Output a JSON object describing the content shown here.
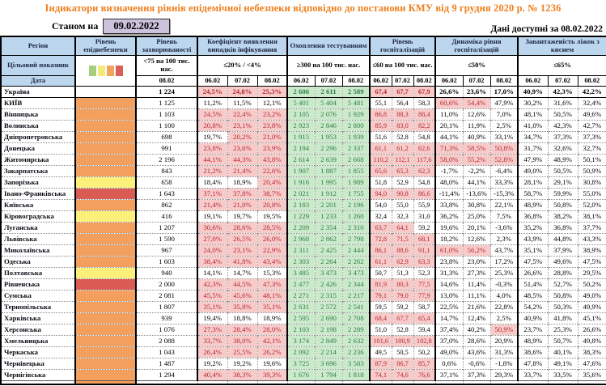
{
  "title": "Індикатори визначення рівнів епідемічної небезпеки відповідно до постанови КМУ від 9 грудня 2020 р. № 1236",
  "subheader": {
    "as_of_label": "Станом на",
    "as_of_date": "09.02.2022",
    "available_label": "Дані доступні за",
    "available_date": "08.02.2022"
  },
  "header": {
    "region_label": "Регіон",
    "target_label": "Цільовий показник",
    "date_label": "Дата",
    "groups": [
      {
        "name": "Рівень епіднебезпеки",
        "threshold": "",
        "dates": []
      },
      {
        "name": "Рівень захворюваності",
        "threshold": "<75 на 100 тис. нас.",
        "dates": [
          "08.02"
        ]
      },
      {
        "name": "Коефіцієнт виявлення випадків інфікування",
        "threshold": "≤20% / <4%",
        "dates": [
          "06.02",
          "07.02",
          "08.02"
        ]
      },
      {
        "name": "Охоплення тестуванням",
        "threshold": "≥300 на 100 тис. нас.",
        "dates": [
          "06.02",
          "07.02",
          "08.02"
        ]
      },
      {
        "name": "Рівень госпіталізацій",
        "threshold": "≤60 на 100 тис. нас.",
        "dates": [
          "06.02",
          "07.02",
          "08.02"
        ]
      },
      {
        "name": "Динаміка рівня госпіталізацій",
        "threshold": "≤50%",
        "dates": [
          "06.02",
          "07.02",
          "08.02"
        ]
      },
      {
        "name": "Завантаженість ліжок з киснем",
        "threshold": "≤65%",
        "dates": [
          "06.02",
          "07.02",
          "08.02"
        ]
      }
    ]
  },
  "legend_colors": [
    "#A5CE7D",
    "#F5E97B",
    "#F2A45C",
    "#DB5E58"
  ],
  "level_colors": {
    "none": "#FFFFFF",
    "green": "#A5CE7D",
    "yellow": "#FAF07A",
    "orange": "#F3A05E",
    "red": "#D95B53"
  },
  "thresholds": {
    "koef": 20,
    "hosp": 60,
    "dyn": 50,
    "load": 65
  },
  "status_colors": {
    "good_bg": "#CBEACB",
    "good_text": "#2F7D44",
    "bad_bg": "#F8CBCB",
    "bad_text": "#B3262E"
  },
  "rows": [
    {
      "region": "Україна",
      "bold": true,
      "level": "none",
      "zahv": "1 224",
      "koef": [
        "24,5%",
        "24,8%",
        "25,3%"
      ],
      "test": [
        "2 606",
        "2 611",
        "2 589"
      ],
      "hosp": [
        "67,4",
        "67,7",
        "67,9"
      ],
      "dyn": [
        "26,6%",
        "23,6%",
        "17,0%"
      ],
      "load": [
        "40,9%",
        "42,3%",
        "42,2%"
      ]
    },
    {
      "region": "КИЇВ",
      "bold": false,
      "level": "orange",
      "zahv": "1 125",
      "koef": [
        "11,2%",
        "11,5%",
        "12,1%"
      ],
      "test": [
        "5 401",
        "5 404",
        "5 481"
      ],
      "hosp": [
        "55,1",
        "56,4",
        "58,3"
      ],
      "dyn": [
        "60,6%",
        "54,4%",
        "47,9%"
      ],
      "load": [
        "30,2%",
        "31,6%",
        "32,4%"
      ]
    },
    {
      "region": "Вінницька",
      "bold": false,
      "level": "orange",
      "zahv": "1 103",
      "koef": [
        "24,5%",
        "22,4%",
        "23,2%"
      ],
      "test": [
        "2 105",
        "2 076",
        "1 929"
      ],
      "hosp": [
        "86,8",
        "88,3",
        "88,4"
      ],
      "dyn": [
        "11,0%",
        "12,6%",
        "7,0%"
      ],
      "load": [
        "48,1%",
        "50,5%",
        "49,6%"
      ]
    },
    {
      "region": "Волинська",
      "bold": false,
      "level": "orange",
      "zahv": "1 100",
      "koef": [
        "20,8%",
        "23,1%",
        "23,8%"
      ],
      "test": [
        "2 923",
        "2 846",
        "2 800"
      ],
      "hosp": [
        "85,9",
        "83,0",
        "82,2"
      ],
      "dyn": [
        "20,1%",
        "11,9%",
        "2,5%"
      ],
      "load": [
        "41,0%",
        "42,3%",
        "42,7%"
      ]
    },
    {
      "region": "Дніпропетровська",
      "bold": false,
      "level": "orange",
      "zahv": "698",
      "koef": [
        "19,7%",
        "20,2%",
        "21,0%"
      ],
      "test": [
        "1 915",
        "1 953",
        "1 939"
      ],
      "hosp": [
        "51,6",
        "52,8",
        "54,8"
      ],
      "dyn": [
        "44,1%",
        "40,9%",
        "33,1%"
      ],
      "load": [
        "34,7%",
        "37,3%",
        "37,3%"
      ]
    },
    {
      "region": "Донецька",
      "bold": false,
      "level": "orange",
      "zahv": "991",
      "koef": [
        "23,8%",
        "23,6%",
        "23,9%"
      ],
      "test": [
        "2 194",
        "2 296",
        "2 337"
      ],
      "hosp": [
        "61,1",
        "61,2",
        "62,6"
      ],
      "dyn": [
        "71,3%",
        "58,5%",
        "50,8%"
      ],
      "load": [
        "31,7%",
        "32,6%",
        "32,7%"
      ]
    },
    {
      "region": "Житомирська",
      "bold": false,
      "level": "orange",
      "zahv": "2 196",
      "koef": [
        "44,1%",
        "44,3%",
        "43,8%"
      ],
      "test": [
        "2 614",
        "2 639",
        "2 668"
      ],
      "hosp": [
        "110,2",
        "112,1",
        "117,6"
      ],
      "dyn": [
        "58,0%",
        "55,2%",
        "52,8%"
      ],
      "load": [
        "47,9%",
        "48,9%",
        "50,1%"
      ]
    },
    {
      "region": "Закарпатська",
      "bold": false,
      "level": "orange",
      "zahv": "843",
      "koef": [
        "21,2%",
        "21,4%",
        "22,6%"
      ],
      "test": [
        "1 907",
        "1 887",
        "1 855"
      ],
      "hosp": [
        "65,6",
        "65,3",
        "62,3"
      ],
      "dyn": [
        "-1,7%",
        "-2,2%",
        "-6,4%"
      ],
      "load": [
        "49,0%",
        "50,5%",
        "50,9%"
      ]
    },
    {
      "region": "Запорізька",
      "bold": false,
      "level": "yellow",
      "zahv": "658",
      "koef": [
        "18,4%",
        "18,9%",
        "20,4%"
      ],
      "test": [
        "1 916",
        "1 995",
        "1 989"
      ],
      "hosp": [
        "51,8",
        "52,9",
        "54,8"
      ],
      "dyn": [
        "48,0%",
        "44,1%",
        "33,3%"
      ],
      "load": [
        "28,1%",
        "29,1%",
        "30,8%"
      ]
    },
    {
      "region": "Івано-Франківська",
      "bold": false,
      "level": "red",
      "zahv": "1 643",
      "koef": [
        "37,1%",
        "37,8%",
        "38,7%"
      ],
      "test": [
        "2 021",
        "1 912",
        "1 755"
      ],
      "hosp": [
        "94,0",
        "90,8",
        "86,6"
      ],
      "dyn": [
        "-11,4%",
        "-13,6%",
        "-15,3%"
      ],
      "load": [
        "58,7%",
        "59,9%",
        "55,0%"
      ]
    },
    {
      "region": "Київська",
      "bold": false,
      "level": "orange",
      "zahv": "862",
      "koef": [
        "21,4%",
        "21,0%",
        "20,8%"
      ],
      "test": [
        "2 183",
        "2 201",
        "2 196"
      ],
      "hosp": [
        "54,0",
        "55,0",
        "55,9"
      ],
      "dyn": [
        "33,8%",
        "30,8%",
        "22,1%"
      ],
      "load": [
        "48,9%",
        "50,8%",
        "52,0%"
      ]
    },
    {
      "region": "Кіровоградська",
      "bold": false,
      "level": "yellow",
      "zahv": "416",
      "koef": [
        "19,1%",
        "19,7%",
        "19,5%"
      ],
      "test": [
        "1 229",
        "1 233",
        "1 260"
      ],
      "hosp": [
        "32,4",
        "32,3",
        "31,0"
      ],
      "dyn": [
        "36,2%",
        "25,0%",
        "7,5%"
      ],
      "load": [
        "36,8%",
        "38,2%",
        "38,1%"
      ]
    },
    {
      "region": "Луганська",
      "bold": false,
      "level": "orange",
      "zahv": "1 207",
      "koef": [
        "30,6%",
        "28,6%",
        "28,5%"
      ],
      "test": [
        "2 209",
        "2 354",
        "2 310"
      ],
      "hosp": [
        "63,7",
        "64,1",
        "59,2"
      ],
      "dyn": [
        "19,6%",
        "20,1%",
        "-3,6%"
      ],
      "load": [
        "35,2%",
        "36,8%",
        "37,7%"
      ]
    },
    {
      "region": "Львівська",
      "bold": false,
      "level": "orange",
      "zahv": "1 590",
      "koef": [
        "27,0%",
        "26,5%",
        "26,0%"
      ],
      "test": [
        "2 968",
        "2 862",
        "2 798"
      ],
      "hosp": [
        "72,8",
        "71,5",
        "68,1"
      ],
      "dyn": [
        "18,2%",
        "12,6%",
        "2,3%"
      ],
      "load": [
        "43,9%",
        "44,8%",
        "43,3%"
      ]
    },
    {
      "region": "Миколаївська",
      "bold": false,
      "level": "orange",
      "zahv": "967",
      "koef": [
        "24,0%",
        "23,1%",
        "22,9%"
      ],
      "test": [
        "2 311",
        "2 425",
        "2 444"
      ],
      "hosp": [
        "86,1",
        "88,6",
        "91,1"
      ],
      "dyn": [
        "61,0%",
        "56,2%",
        "43,7%"
      ],
      "load": [
        "35,1%",
        "37,9%",
        "38,9%"
      ]
    },
    {
      "region": "Одеська",
      "bold": false,
      "level": "orange",
      "zahv": "1 603",
      "koef": [
        "38,4%",
        "41,8%",
        "43,4%"
      ],
      "test": [
        "2 303",
        "2 264",
        "2 262"
      ],
      "hosp": [
        "61,1",
        "62,9",
        "63,3"
      ],
      "dyn": [
        "23,8%",
        "23,0%",
        "17,2%"
      ],
      "load": [
        "47,5%",
        "49,6%",
        "47,5%"
      ]
    },
    {
      "region": "Полтавська",
      "bold": false,
      "level": "yellow",
      "zahv": "940",
      "koef": [
        "14,1%",
        "14,7%",
        "15,3%"
      ],
      "test": [
        "3 485",
        "3 473",
        "3 473"
      ],
      "hosp": [
        "50,7",
        "51,3",
        "52,3"
      ],
      "dyn": [
        "31,3%",
        "27,3%",
        "25,3%"
      ],
      "load": [
        "26,6%",
        "28,8%",
        "29,5%"
      ]
    },
    {
      "region": "Рівненська",
      "bold": false,
      "level": "red",
      "zahv": "2 000",
      "koef": [
        "42,3%",
        "44,5%",
        "47,3%"
      ],
      "test": [
        "2 477",
        "2 426",
        "2 344"
      ],
      "hosp": [
        "81,9",
        "80,3",
        "77,5"
      ],
      "dyn": [
        "14,6%",
        "11,4%",
        "-0,3%"
      ],
      "load": [
        "51,4%",
        "52,7%",
        "50,2%"
      ]
    },
    {
      "region": "Сумська",
      "bold": false,
      "level": "orange",
      "zahv": "2 081",
      "koef": [
        "45,5%",
        "45,6%",
        "48,1%"
      ],
      "test": [
        "2 271",
        "2 315",
        "2 217"
      ],
      "hosp": [
        "79,1",
        "79,0",
        "77,9"
      ],
      "dyn": [
        "13,0%",
        "11,1%",
        "4,0%"
      ],
      "load": [
        "48,5%",
        "50,8%",
        "49,0%"
      ]
    },
    {
      "region": "Тернопільська",
      "bold": false,
      "level": "orange",
      "zahv": "1 807",
      "koef": [
        "35,1%",
        "35,8%",
        "35,1%"
      ],
      "test": [
        "2 631",
        "2 572",
        "2 541"
      ],
      "hosp": [
        "59,5",
        "59,2",
        "58,7"
      ],
      "dyn": [
        "22,5%",
        "21,6%",
        "22,8%"
      ],
      "load": [
        "54,2%",
        "50,3%",
        "49,9%"
      ]
    },
    {
      "region": "Харківська",
      "bold": false,
      "level": "orange",
      "zahv": "939",
      "koef": [
        "19,4%",
        "18,8%",
        "18,9%"
      ],
      "test": [
        "2 595",
        "2 690",
        "2 708"
      ],
      "hosp": [
        "68,4",
        "67,7",
        "65,4"
      ],
      "dyn": [
        "14,7%",
        "12,4%",
        "2,5%"
      ],
      "load": [
        "40,9%",
        "41,8%",
        "45,1%"
      ]
    },
    {
      "region": "Херсонська",
      "bold": false,
      "level": "orange",
      "zahv": "1 076",
      "koef": [
        "27,3%",
        "28,4%",
        "28,0%"
      ],
      "test": [
        "2 103",
        "2 198",
        "2 289"
      ],
      "hosp": [
        "51,0",
        "52,8",
        "59,4"
      ],
      "dyn": [
        "37,4%",
        "40,2%",
        "50,9%"
      ],
      "load": [
        "23,7%",
        "25,3%",
        "26,6%"
      ]
    },
    {
      "region": "Хмельницька",
      "bold": false,
      "level": "orange",
      "zahv": "2 088",
      "koef": [
        "33,7%",
        "38,0%",
        "42,1%"
      ],
      "test": [
        "3 174",
        "2 849",
        "2 632"
      ],
      "hosp": [
        "101,6",
        "100,9",
        "102,8"
      ],
      "dyn": [
        "37,0%",
        "28,6%",
        "20,9%"
      ],
      "load": [
        "48,9%",
        "50,7%",
        "49,8%"
      ]
    },
    {
      "region": "Черкаська",
      "bold": false,
      "level": "orange",
      "zahv": "1 043",
      "koef": [
        "26,4%",
        "25,5%",
        "26,2%"
      ],
      "test": [
        "2 092",
        "2 214",
        "2 236"
      ],
      "hosp": [
        "49,5",
        "50,5",
        "50,2"
      ],
      "dyn": [
        "49,0%",
        "43,6%",
        "31,3%"
      ],
      "load": [
        "38,6%",
        "40,1%",
        "38,3%"
      ]
    },
    {
      "region": "Чернівецька",
      "bold": false,
      "level": "orange",
      "zahv": "1 487",
      "koef": [
        "19,2%",
        "19,2%",
        "19,6%"
      ],
      "test": [
        "3 725",
        "3 696",
        "3 583"
      ],
      "hosp": [
        "87,9",
        "86,7",
        "85,7"
      ],
      "dyn": [
        "0,6%",
        "-0,6%",
        "-1,8%"
      ],
      "load": [
        "47,8%",
        "49,1%",
        "47,6%"
      ]
    },
    {
      "region": "Чернігівська",
      "bold": false,
      "level": "orange",
      "zahv": "1 294",
      "koef": [
        "40,4%",
        "38,3%",
        "39,3%"
      ],
      "test": [
        "1 676",
        "1 794",
        "1 818"
      ],
      "hosp": [
        "74,1",
        "74,6",
        "76,6"
      ],
      "dyn": [
        "37,1%",
        "37,3%",
        "29,3%"
      ],
      "load": [
        "33,7%",
        "33,5%",
        "35,6%"
      ]
    }
  ],
  "partial_row": {
    "level": "orange"
  }
}
